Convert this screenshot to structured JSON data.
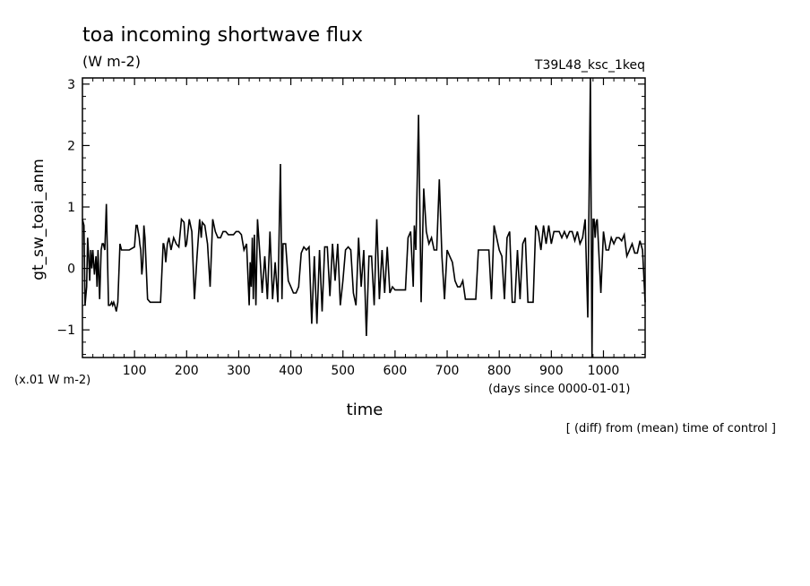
{
  "chart_data": {
    "type": "line",
    "title": "toa incoming shortwave flux",
    "units": "(W m-2)",
    "run_label": "T39L48_ksc_1keq",
    "ylabel": "gt_sw_toai_anm",
    "yscale_label": "(x.01 W m-2)",
    "xlabel": "time",
    "xunits": "(days since 0000-01-01)",
    "note": "[ (diff) from (mean) time of control ]",
    "xlim": [
      0,
      1080
    ],
    "ylim": [
      -1.45,
      3.1
    ],
    "xticks": [
      100,
      200,
      300,
      400,
      500,
      600,
      700,
      800,
      900,
      1000
    ],
    "yticks": [
      -1,
      0,
      1,
      2,
      3
    ],
    "ytick_labels": [
      "−1",
      "0",
      "1",
      "2",
      "3"
    ],
    "series": [
      {
        "x": [
          0,
          3,
          5,
          8,
          10,
          12,
          14,
          16,
          18,
          20,
          23,
          26,
          28,
          30,
          33,
          36,
          38,
          40,
          43,
          46,
          50,
          53,
          56,
          58,
          60,
          62,
          65,
          68,
          72,
          75,
          78,
          80,
          90,
          100,
          103,
          105,
          107,
          109,
          110,
          112,
          114,
          116,
          118,
          120,
          125,
          130,
          140,
          150,
          155,
          156,
          158,
          160,
          163,
          166,
          170,
          175,
          180,
          185,
          190,
          195,
          198,
          200,
          205,
          210,
          215,
          220,
          225,
          228,
          230,
          235,
          240,
          245,
          250,
          255,
          260,
          265,
          270,
          275,
          280,
          285,
          290,
          295,
          300,
          305,
          310,
          315,
          320,
          322,
          324,
          326,
          328,
          330,
          333,
          336,
          340,
          345,
          350,
          355,
          360,
          365,
          370,
          375,
          380,
          383,
          385,
          390,
          395,
          400,
          405,
          410,
          415,
          420,
          425,
          430,
          435,
          440,
          445,
          450,
          455,
          460,
          465,
          470,
          475,
          480,
          485,
          490,
          495,
          500,
          505,
          510,
          515,
          520,
          525,
          530,
          535,
          540,
          545,
          550,
          555,
          560,
          565,
          570,
          575,
          580,
          585,
          590,
          595,
          600,
          605,
          610,
          615,
          620,
          625,
          630,
          635,
          637,
          640,
          645,
          650,
          655,
          660,
          665,
          670,
          675,
          680,
          685,
          690,
          695,
          700,
          705,
          710,
          715,
          720,
          725,
          730,
          735,
          740,
          745,
          750,
          755,
          760,
          765,
          770,
          775,
          780,
          785,
          790,
          795,
          800,
          805,
          810,
          815,
          820,
          825,
          830,
          835,
          840,
          845,
          850,
          855,
          860,
          865,
          870,
          875,
          880,
          885,
          890,
          895,
          900,
          905,
          910,
          915,
          920,
          925,
          930,
          935,
          940,
          945,
          950,
          955,
          960,
          965,
          970,
          975,
          978,
          980,
          982,
          984,
          986,
          988,
          990,
          995,
          1000,
          1005,
          1010,
          1015,
          1020,
          1025,
          1030,
          1035,
          1040,
          1045,
          1050,
          1055,
          1060,
          1065,
          1070,
          1075,
          1080
        ],
        "y": [
          0.8,
          0.7,
          -0.6,
          -0.3,
          0.5,
          0.2,
          -0.2,
          0.3,
          0,
          0.3,
          -0.1,
          0.2,
          -0.3,
          0.3,
          -0.5,
          0.3,
          0.4,
          0.4,
          0.3,
          1.05,
          -0.6,
          -0.6,
          -0.55,
          -0.6,
          -0.55,
          -0.6,
          -0.7,
          -0.55,
          0.4,
          0.3,
          0.3,
          0.3,
          0.3,
          0.35,
          0.7,
          0.7,
          0.6,
          0.5,
          0.4,
          0.3,
          -0.1,
          0.1,
          0.7,
          0.5,
          -0.5,
          -0.55,
          -0.55,
          -0.55,
          0.4,
          0.4,
          0.3,
          0.1,
          0.4,
          0.5,
          0.3,
          0.5,
          0.4,
          0.35,
          0.8,
          0.75,
          0.35,
          0.4,
          0.8,
          0.6,
          -0.5,
          0.2,
          0.8,
          0.5,
          0.75,
          0.7,
          0.4,
          -0.3,
          0.8,
          0.6,
          0.5,
          0.5,
          0.6,
          0.6,
          0.55,
          0.55,
          0.55,
          0.6,
          0.6,
          0.55,
          0.3,
          0.4,
          -0.6,
          0.1,
          -0.3,
          0.5,
          -0.5,
          0.55,
          -0.6,
          0.8,
          0.3,
          -0.4,
          0.2,
          -0.5,
          0.6,
          -0.5,
          0.1,
          -0.55,
          1.7,
          -0.5,
          0.4,
          0.4,
          -0.2,
          -0.3,
          -0.4,
          -0.4,
          -0.3,
          0.25,
          0.35,
          0.3,
          0.35,
          -0.9,
          0.2,
          -0.9,
          0.3,
          -0.7,
          0.35,
          0.35,
          -0.45,
          0.4,
          -0.2,
          0.4,
          -0.6,
          -0.2,
          0.3,
          0.35,
          0.3,
          -0.4,
          -0.6,
          0.5,
          -0.3,
          0.3,
          -1.1,
          0.2,
          0.2,
          -0.6,
          0.8,
          -0.5,
          0.3,
          -0.4,
          0.35,
          -0.4,
          -0.3,
          -0.35,
          -0.35,
          -0.35,
          -0.35,
          -0.35,
          0.5,
          0.6,
          -0.3,
          0.7,
          0.3,
          2.5,
          -0.55,
          1.3,
          0.6,
          0.4,
          0.5,
          0.3,
          0.3,
          1.45,
          0.2,
          -0.5,
          0.3,
          0.2,
          0.1,
          -0.2,
          -0.3,
          -0.3,
          -0.2,
          -0.5,
          -0.5,
          -0.5,
          -0.5,
          -0.5,
          0.3,
          0.3,
          0.3,
          0.3,
          0.3,
          -0.5,
          0.7,
          0.5,
          0.3,
          0.2,
          -0.5,
          0.5,
          0.6,
          -0.55,
          -0.55,
          0.3,
          -0.5,
          0.4,
          0.5,
          -0.55,
          -0.55,
          -0.55,
          0.7,
          0.6,
          0.3,
          0.7,
          0.4,
          0.7,
          0.4,
          0.6,
          0.6,
          0.6,
          0.5,
          0.6,
          0.5,
          0.6,
          0.6,
          0.45,
          0.6,
          0.4,
          0.5,
          0.8,
          -0.8,
          3.1,
          -1.45,
          0.8,
          0.8,
          0.5,
          0.75,
          0.8,
          0.45,
          -0.4,
          0.6,
          0.3,
          0.3,
          0.5,
          0.4,
          0.5,
          0.5,
          0.45,
          0.55,
          0.2,
          0.3,
          0.4,
          0.25,
          0.25,
          0.45,
          0.3,
          -0.55
        ]
      }
    ]
  }
}
